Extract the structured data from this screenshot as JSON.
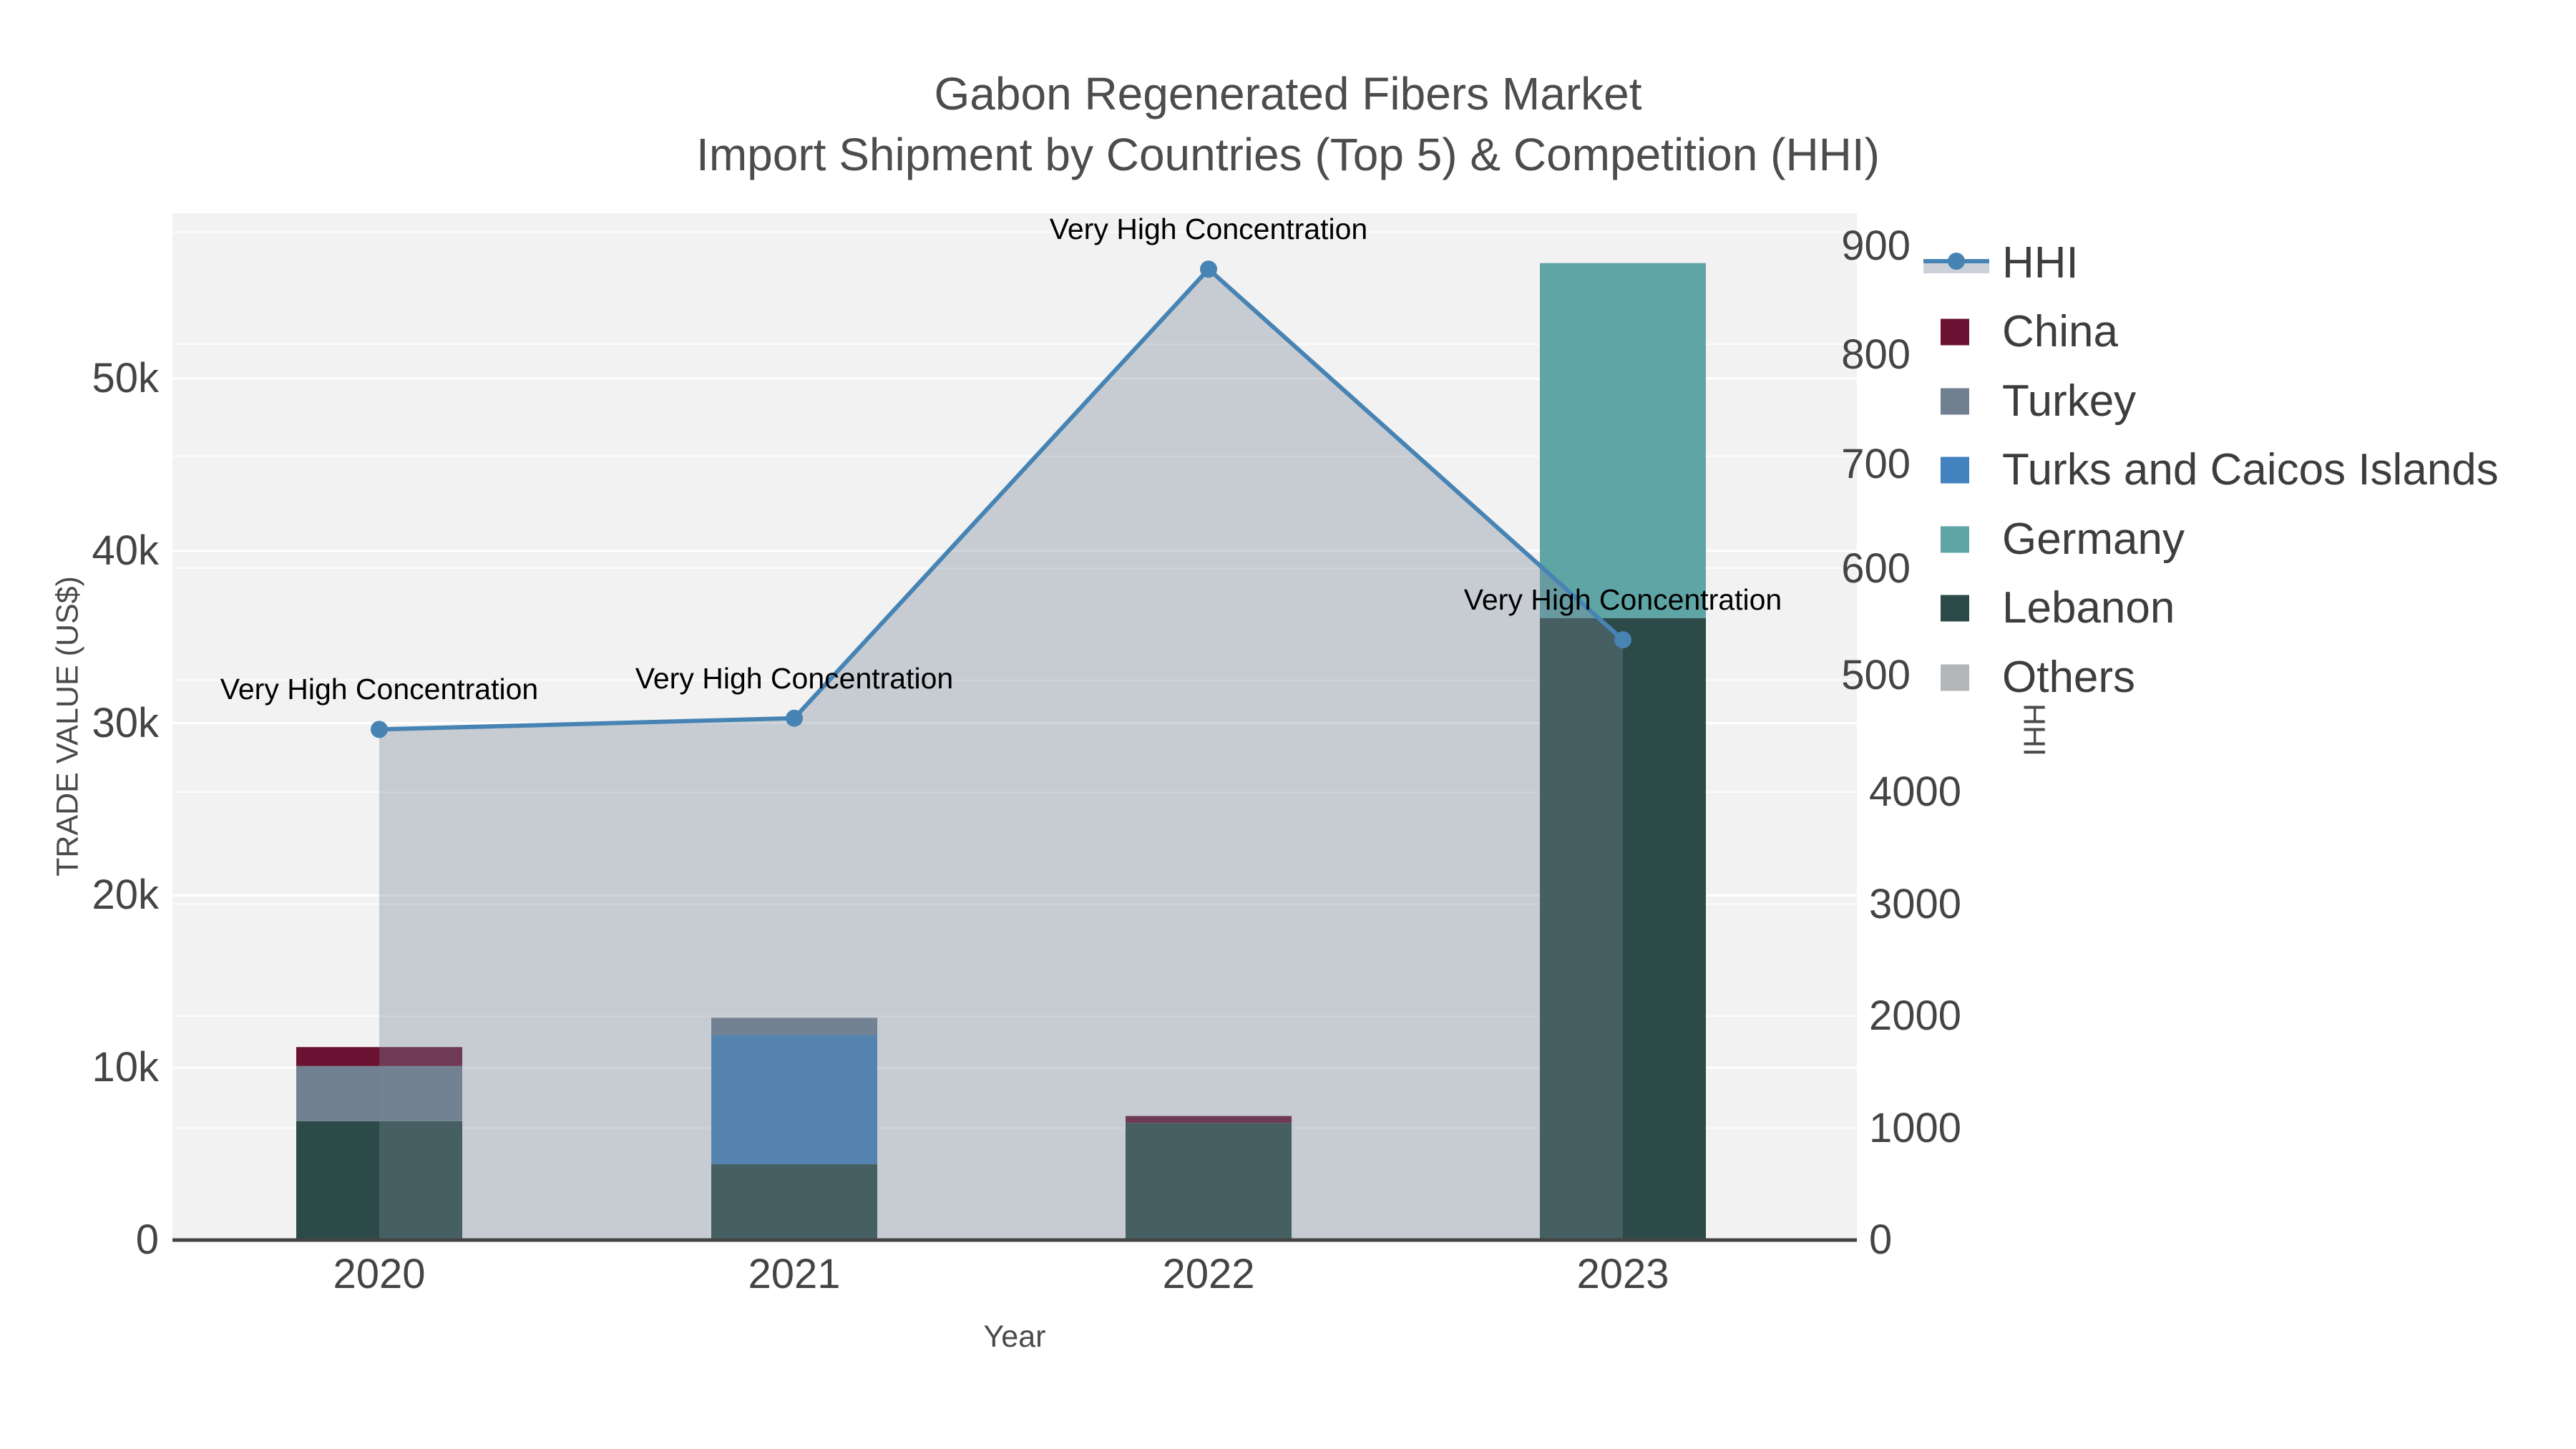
{
  "title": {
    "line1": "Gabon Regenerated Fibers Market",
    "line2": "Import Shipment by Countries (Top 5) & Competition (HHI)"
  },
  "axes": {
    "x": {
      "title": "Year",
      "ticks": [
        "2020",
        "2021",
        "2022",
        "2023"
      ]
    },
    "y_left": {
      "title": "TRADE VALUE (US$)",
      "ticks": [
        "0",
        "10k",
        "20k",
        "30k",
        "40k",
        "50k"
      ]
    },
    "y_right": {
      "title": "HHI",
      "upper_ticks": [
        "900",
        "800",
        "700",
        "600",
        "500"
      ],
      "lower_ticks": [
        "4000",
        "3000",
        "2000",
        "1000",
        "0"
      ]
    }
  },
  "legend": {
    "items": [
      {
        "label": "HHI",
        "type": "line",
        "color": "#4784b4",
        "fill": "#ccd1d9"
      },
      {
        "label": "China",
        "type": "swatch",
        "color": "#6b1232"
      },
      {
        "label": "Turkey",
        "type": "swatch",
        "color": "#708090"
      },
      {
        "label": "Turks and Caicos Islands",
        "type": "swatch",
        "color": "#4282be"
      },
      {
        "label": "Germany",
        "type": "swatch",
        "color": "#5fa5a6"
      },
      {
        "label": "Lebanon",
        "type": "swatch",
        "color": "#2c4a48"
      },
      {
        "label": "Others",
        "type": "swatch",
        "color": "#b3b6b9"
      }
    ]
  },
  "chart_data": {
    "type": "combo_stacked_bar_line",
    "title": "Gabon Regenerated Fibers Market — Import Shipment by Countries (Top 5) & Competition (HHI)",
    "xlabel": "Year",
    "ylabel": "TRADE VALUE (US$)",
    "y2label": "HHI",
    "categories": [
      "2020",
      "2021",
      "2022",
      "2023"
    ],
    "bar_series": [
      {
        "name": "Lebanon",
        "color": "#2c4a48",
        "values": [
          6900,
          4400,
          6800,
          36100
        ]
      },
      {
        "name": "Germany",
        "color": "#5fa5a6",
        "values": [
          0,
          0,
          0,
          20600
        ]
      },
      {
        "name": "Turks and Caicos Islands",
        "color": "#4282be",
        "values": [
          0,
          7500,
          0,
          0
        ]
      },
      {
        "name": "Turkey",
        "color": "#708090",
        "values": [
          3200,
          1000,
          0,
          0
        ]
      },
      {
        "name": "China",
        "color": "#6b1232",
        "values": [
          1100,
          0,
          400,
          0
        ]
      },
      {
        "name": "Others",
        "color": "#b3b6b9",
        "values": [
          0,
          0,
          0,
          0
        ]
      }
    ],
    "bar_totals": [
      11200,
      12900,
      7200,
      56700
    ],
    "line_series": {
      "name": "HHI",
      "color": "#4784b4",
      "axis": "right",
      "fill_to_zero": true,
      "fill_color": "rgba(120,134,153,0.35)",
      "values": [
        4560,
        4660,
        8670,
        5360
      ]
    },
    "annotations": [
      {
        "text": "Very High Concentration",
        "category": "2020",
        "hhi": 4560
      },
      {
        "text": "Very High Concentration",
        "category": "2021",
        "hhi": 4660
      },
      {
        "text": "Very High Concentration",
        "category": "2022",
        "hhi": 8670
      },
      {
        "text": "Very High Concentration",
        "category": "2023",
        "hhi": 5360
      }
    ],
    "ylim": [
      0,
      59500
    ],
    "y2lim": [
      0,
      9170
    ],
    "grid": true,
    "legend_position": "right",
    "plot_background": "#f2f2f2"
  }
}
